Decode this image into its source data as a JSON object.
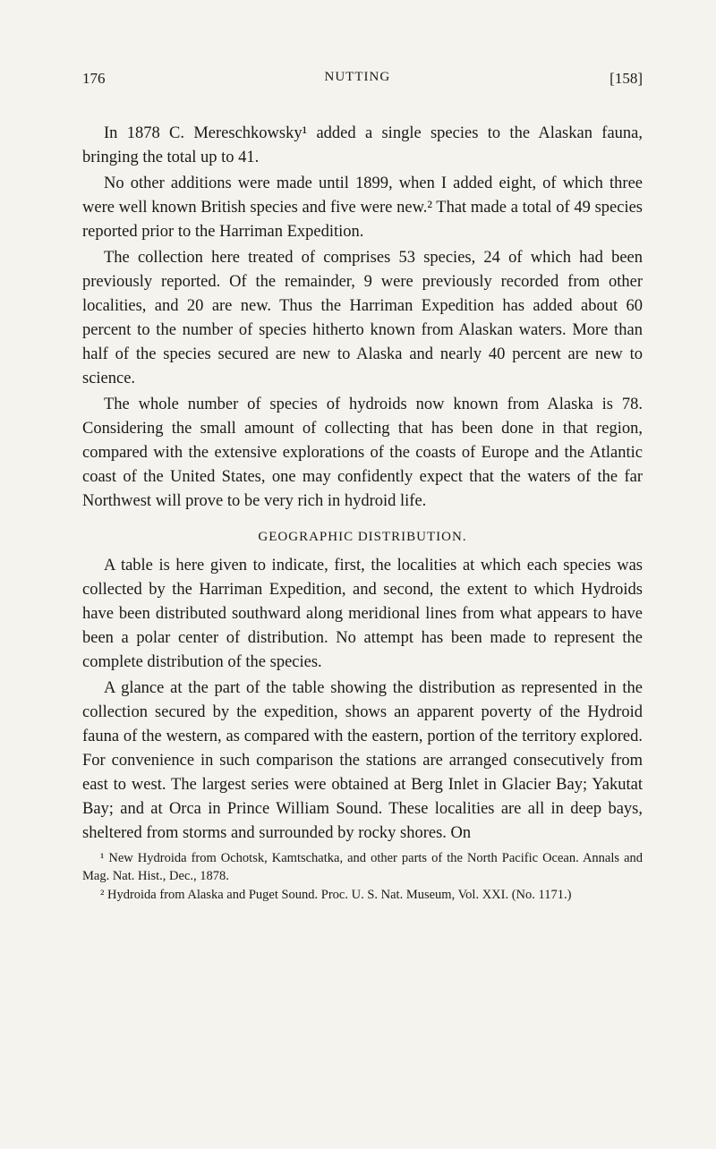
{
  "page_number_left": "176",
  "header_title": "NUTTING",
  "page_number_right": "[158]",
  "paragraphs": {
    "p1": "In 1878 C. Mereschkowsky¹ added a single species to the Alaskan fauna, bringing the total up to 41.",
    "p2": "No other additions were made until 1899, when I added eight, of which three were well known British species and five were new.² That made a total of 49 species reported prior to the Harriman Expedition.",
    "p3": "The collection here treated of comprises 53 species, 24 of which had been previously reported. Of the remainder, 9 were previously recorded from other localities, and 20 are new. Thus the Harriman Expedition has added about 60 percent to the number of species hitherto known from Alaskan waters. More than half of the species secured are new to Alaska and nearly 40 percent are new to science.",
    "p4": "The whole number of species of hydroids now known from Alaska is 78. Considering the small amount of collecting that has been done in that region, compared with the extensive explorations of the coasts of Europe and the Atlantic coast of the United States, one may confidently expect that the waters of the far Northwest will prove to be very rich in hydroid life.",
    "p5": "A table is here given to indicate, first, the localities at which each species was collected by the Harriman Expedition, and second, the extent to which Hydroids have been distributed southward along meridional lines from what appears to have been a polar center of distribution. No attempt has been made to represent the complete distribution of the species.",
    "p6": "A glance at the part of the table showing the distribution as represented in the collection secured by the expedition, shows an apparent poverty of the Hydroid fauna of the western, as compared with the eastern, portion of the territory explored. For convenience in such comparison the stations are arranged consecutively from east to west. The largest series were obtained at Berg Inlet in Glacier Bay; Yakutat Bay; and at Orca in Prince William Sound. These localities are all in deep bays, sheltered from storms and surrounded by rocky shores. On"
  },
  "section_heading": "GEOGRAPHIC DISTRIBUTION.",
  "footnotes": {
    "f1": "¹ New Hydroida from Ochotsk, Kamtschatka, and other parts of the North Pacific Ocean. Annals and Mag. Nat. Hist., Dec., 1878.",
    "f2": "² Hydroida from Alaska and Puget Sound. Proc. U. S. Nat. Museum, Vol. XXI. (No. 1171.)"
  },
  "colors": {
    "background": "#f5f3ee",
    "text": "#1a1a1a"
  },
  "typography": {
    "body_fontsize": 18.5,
    "header_fontsize": 15,
    "footnote_fontsize": 14.5,
    "line_height": 1.46,
    "font_family": "Georgia, Times New Roman, serif"
  }
}
